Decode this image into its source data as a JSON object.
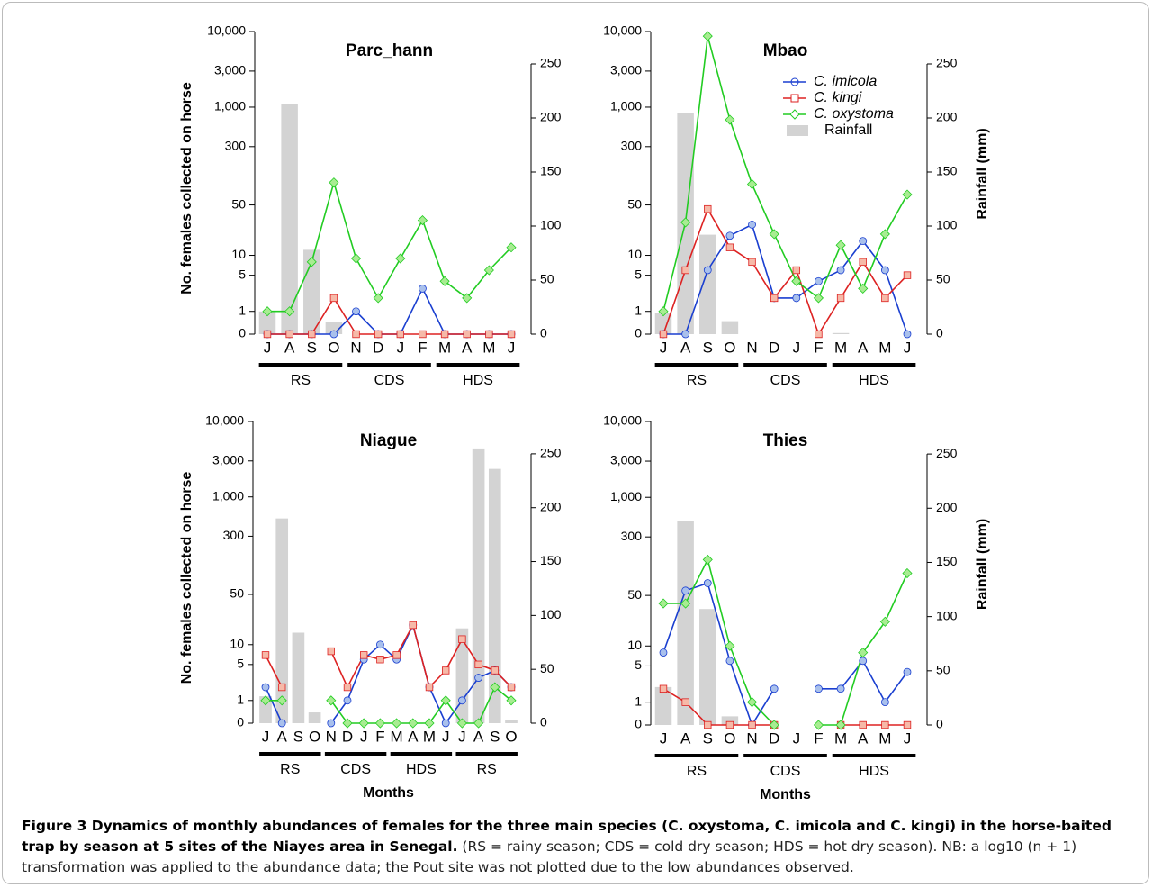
{
  "chart_data": [
    {
      "type": "line",
      "title": "Parc_hann",
      "categories": [
        "J",
        "A",
        "S",
        "O",
        "N",
        "D",
        "J",
        "F",
        "M",
        "A",
        "M",
        "J"
      ],
      "seasons": [
        {
          "label": "RS",
          "start": 0,
          "end": 3
        },
        {
          "label": "CDS",
          "start": 4,
          "end": 7
        },
        {
          "label": "HDS",
          "start": 8,
          "end": 11
        }
      ],
      "ylabel": "No. females collected on horse",
      "yscale": "log1p",
      "ylim": [
        0,
        10000
      ],
      "yticks": [
        0,
        1,
        5,
        10,
        50,
        300,
        {
          "value": 1000,
          "label": "1,000"
        },
        {
          "value": 3000,
          "label": "3,000"
        },
        {
          "value": 10000,
          "label": "10,000"
        }
      ],
      "y2lim": [
        0,
        280
      ],
      "y2ticks": [
        0,
        50,
        100,
        150,
        200,
        250
      ],
      "series": [
        {
          "color": "#1a3fd0",
          "marker": "circle",
          "values": [
            0,
            0,
            0,
            0,
            1,
            0,
            0,
            3,
            0,
            0,
            0,
            0
          ]
        },
        {
          "color": "#dd2222",
          "marker": "square",
          "values": [
            0,
            0,
            0,
            2,
            0,
            0,
            0,
            0,
            0,
            0,
            0,
            0
          ]
        },
        {
          "color": "#22cc22",
          "marker": "diamond",
          "values": [
            1,
            1,
            8,
            100,
            9,
            2,
            9,
            31,
            4,
            2,
            6,
            13
          ]
        },
        {
          "type": "bar",
          "axis": "y2",
          "color": "#d3d3d3",
          "values": [
            21,
            213,
            78,
            11,
            0,
            0,
            0,
            0,
            0,
            0,
            0,
            0
          ]
        }
      ]
    },
    {
      "type": "line",
      "title": "Mbao",
      "categories": [
        "J",
        "A",
        "S",
        "O",
        "N",
        "D",
        "J",
        "F",
        "M",
        "A",
        "M",
        "J"
      ],
      "seasons": [
        {
          "label": "RS",
          "start": 0,
          "end": 3
        },
        {
          "label": "CDS",
          "start": 4,
          "end": 7
        },
        {
          "label": "HDS",
          "start": 8,
          "end": 11
        }
      ],
      "y2label": "Rainfall (mm)",
      "legend": "top-right",
      "yscale": "log1p",
      "ylim": [
        0,
        10000
      ],
      "yticks": [
        0,
        1,
        5,
        10,
        50,
        300,
        {
          "value": 1000,
          "label": "1,000"
        },
        {
          "value": 3000,
          "label": "3,000"
        },
        {
          "value": 10000,
          "label": "10,000"
        }
      ],
      "y2lim": [
        0,
        280
      ],
      "y2ticks": [
        0,
        50,
        100,
        150,
        200,
        250
      ],
      "series": [
        {
          "name": "C. imicola",
          "color": "#1a3fd0",
          "marker": "circle",
          "values": [
            0,
            0,
            6,
            19,
            27,
            2,
            2,
            4,
            6,
            16,
            6,
            0
          ]
        },
        {
          "name": "C. kingi",
          "color": "#dd2222",
          "marker": "square",
          "values": [
            0,
            6,
            44,
            13,
            8,
            2,
            6,
            0,
            2,
            8,
            2,
            5
          ]
        },
        {
          "name": "C. oxystoma",
          "color": "#22cc22",
          "marker": "diamond",
          "values": [
            1,
            29,
            8700,
            680,
            95,
            20,
            4,
            2,
            14,
            3,
            20,
            69
          ]
        },
        {
          "name": "Rainfall",
          "type": "bar",
          "axis": "y2",
          "color": "#d3d3d3",
          "values": [
            20,
            205,
            92,
            12,
            0,
            0,
            0,
            0,
            1,
            0,
            0,
            0
          ]
        }
      ]
    },
    {
      "type": "line",
      "title": "Niague",
      "categories": [
        "J",
        "A",
        "S",
        "O",
        "N",
        "D",
        "J",
        "F",
        "M",
        "A",
        "M",
        "J",
        "J",
        "A",
        "S",
        "O"
      ],
      "seasons": [
        {
          "label": "RS",
          "start": 0,
          "end": 3
        },
        {
          "label": "CDS",
          "start": 4,
          "end": 7
        },
        {
          "label": "HDS",
          "start": 8,
          "end": 11
        },
        {
          "label": "RS",
          "start": 12,
          "end": 15
        }
      ],
      "ylabel": "No. females collected on horse",
      "xlabel": "Months",
      "yscale": "log1p",
      "ylim": [
        0,
        10000
      ],
      "yticks": [
        0,
        1,
        5,
        10,
        50,
        300,
        {
          "value": 1000,
          "label": "1,000"
        },
        {
          "value": 3000,
          "label": "3,000"
        },
        {
          "value": 10000,
          "label": "10,000"
        }
      ],
      "y2lim": [
        0,
        280
      ],
      "y2ticks": [
        0,
        50,
        100,
        150,
        200,
        250
      ],
      "series": [
        {
          "color": "#1a3fd0",
          "marker": "circle",
          "values": [
            2,
            0,
            null,
            null,
            0,
            1,
            6,
            10,
            6,
            19,
            2,
            0,
            1,
            3,
            4,
            2
          ]
        },
        {
          "color": "#dd2222",
          "marker": "square",
          "values": [
            7,
            2,
            null,
            null,
            8,
            2,
            7,
            6,
            7,
            19,
            2,
            4,
            12,
            5,
            4,
            2
          ]
        },
        {
          "color": "#22cc22",
          "marker": "diamond",
          "values": [
            1,
            1,
            null,
            null,
            1,
            0,
            0,
            0,
            0,
            0,
            0,
            1,
            0,
            0,
            2,
            1
          ]
        },
        {
          "type": "bar",
          "axis": "y2",
          "color": "#d3d3d3",
          "values": [
            25,
            190,
            84,
            10,
            0,
            0,
            0,
            0,
            0,
            0,
            0,
            0,
            88,
            255,
            236,
            3
          ]
        }
      ]
    },
    {
      "type": "line",
      "title": "Thies",
      "categories": [
        "J",
        "A",
        "S",
        "O",
        "N",
        "D",
        "J",
        "F",
        "M",
        "A",
        "M",
        "J"
      ],
      "seasons": [
        {
          "label": "RS",
          "start": 0,
          "end": 3
        },
        {
          "label": "CDS",
          "start": 4,
          "end": 7
        },
        {
          "label": "HDS",
          "start": 8,
          "end": 11
        }
      ],
      "y2label": "Rainfall (mm)",
      "xlabel": "Months",
      "yscale": "log1p",
      "ylim": [
        0,
        10000
      ],
      "yticks": [
        0,
        1,
        5,
        10,
        50,
        300,
        {
          "value": 1000,
          "label": "1,000"
        },
        {
          "value": 3000,
          "label": "3,000"
        },
        {
          "value": 10000,
          "label": "10,000"
        }
      ],
      "y2lim": [
        0,
        280
      ],
      "y2ticks": [
        0,
        50,
        100,
        150,
        200,
        250
      ],
      "series": [
        {
          "color": "#1a3fd0",
          "marker": "circle",
          "values": [
            8,
            58,
            73,
            6,
            0,
            2,
            null,
            2,
            2,
            6,
            1,
            4
          ]
        },
        {
          "color": "#dd2222",
          "marker": "square",
          "values": [
            2,
            1,
            0,
            0,
            0,
            0,
            null,
            null,
            0,
            0,
            0,
            0
          ]
        },
        {
          "color": "#22cc22",
          "marker": "diamond",
          "values": [
            39,
            39,
            150,
            10,
            1,
            0,
            null,
            0,
            0,
            8,
            22,
            99
          ]
        },
        {
          "type": "bar",
          "axis": "y2",
          "color": "#d3d3d3",
          "values": [
            35,
            188,
            107,
            8,
            0,
            0,
            0,
            0,
            0,
            0,
            0,
            0
          ]
        }
      ]
    }
  ],
  "caption": {
    "title": "Figure 3 Dynamics of monthly abundances of females for the three main species (C. oxystoma, C. imicola and C. kingi) in the horse-baited trap by season at 5 sites of the Niayes area in Senegal.",
    "text": "(RS = rainy season; CDS = cold dry season; HDS = hot dry season). NB: a log10 (n + 1) transformation was applied to the abundance data; the Pout site was not plotted due to the low abundances observed."
  }
}
